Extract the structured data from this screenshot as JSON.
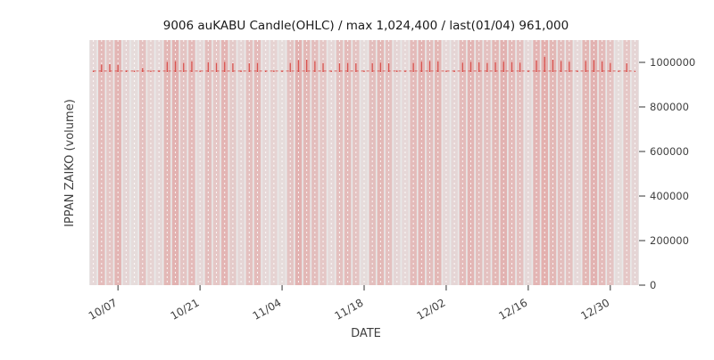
{
  "title": "9006 auKABU Candle(OHLC) / max 1,024,400 / last(01/04) 961,000",
  "axes": {
    "xlabel": "DATE",
    "ylabel": "IPPAN ZAIKO (volume)",
    "ytick_labels": [
      "0",
      "200000",
      "400000",
      "600000",
      "800000",
      "1000000"
    ],
    "ytick_values": [
      0,
      200000,
      400000,
      600000,
      800000,
      1000000
    ],
    "xtick_labels": [
      "10/07",
      "10/21",
      "11/04",
      "11/18",
      "12/02",
      "12/16",
      "12/30"
    ],
    "xtick_indices": [
      3,
      13,
      23,
      33,
      43,
      53,
      63
    ],
    "ylim": [
      0,
      1100000
    ]
  },
  "colors": {
    "candle": "#d9534f",
    "volume_fill": "#d9534f",
    "plot_bg": "#e8e8e8",
    "grid": "#ffffff",
    "text": "#404040",
    "title_text": "#1a1a1a",
    "tick": "#333333"
  },
  "chart_data": {
    "type": "candlestick",
    "title": "9006 auKABU Candle(OHLC) / max 1,024,400 / last(01/04) 961,000",
    "xlabel": "DATE",
    "ylabel": "IPPAN ZAIKO (volume)",
    "max_value": 1024400,
    "last": {
      "date": "01/04",
      "close": 961000
    },
    "open_all": 961000,
    "low_all": 956000,
    "close_all": 961000,
    "dates": [
      "10/04",
      "10/05",
      "10/06",
      "10/07",
      "10/10",
      "10/11",
      "10/12",
      "10/13",
      "10/14",
      "10/17",
      "10/18",
      "10/19",
      "10/20",
      "10/21",
      "10/24",
      "10/25",
      "10/26",
      "10/27",
      "10/28",
      "10/31",
      "11/01",
      "11/02",
      "11/03",
      "11/04",
      "11/07",
      "11/08",
      "11/09",
      "11/10",
      "11/11",
      "11/14",
      "11/15",
      "11/16",
      "11/17",
      "11/18",
      "11/21",
      "11/22",
      "11/23",
      "11/24",
      "11/25",
      "11/28",
      "11/29",
      "11/30",
      "12/01",
      "12/02",
      "12/05",
      "12/06",
      "12/07",
      "12/08",
      "12/09",
      "12/12",
      "12/13",
      "12/14",
      "12/15",
      "12/16",
      "12/19",
      "12/20",
      "12/21",
      "12/22",
      "12/23",
      "12/26",
      "12/27",
      "12/28",
      "12/29",
      "12/30",
      "01/02",
      "01/03",
      "01/04"
    ],
    "highs": [
      963000,
      990000,
      992000,
      988000,
      964000,
      963000,
      975000,
      963000,
      964000,
      1002000,
      1005000,
      998000,
      1004000,
      963000,
      1000000,
      998000,
      1002000,
      996000,
      964000,
      996000,
      998000,
      963000,
      964000,
      963000,
      998000,
      1010000,
      1012000,
      1005000,
      997000,
      963000,
      996000,
      998000,
      996000,
      963000,
      997000,
      999000,
      996000,
      964000,
      963000,
      998000,
      1003000,
      1006000,
      1004000,
      963000,
      964000,
      999000,
      1002000,
      1000000,
      998000,
      1000000,
      1003000,
      1001000,
      999000,
      963000,
      1008000,
      1024400,
      1012000,
      1006000,
      1003000,
      963000,
      1006000,
      1010000,
      1004000,
      998000,
      963000,
      996000,
      961000
    ],
    "volume_alpha": [
      0.1,
      0.3,
      0.22,
      0.34,
      0.12,
      0.08,
      0.26,
      0.14,
      0.1,
      0.32,
      0.36,
      0.24,
      0.3,
      0.1,
      0.28,
      0.22,
      0.34,
      0.2,
      0.12,
      0.26,
      0.3,
      0.1,
      0.14,
      0.08,
      0.24,
      0.36,
      0.32,
      0.28,
      0.22,
      0.1,
      0.26,
      0.3,
      0.24,
      0.08,
      0.28,
      0.32,
      0.26,
      0.12,
      0.1,
      0.3,
      0.34,
      0.28,
      0.32,
      0.1,
      0.12,
      0.3,
      0.34,
      0.28,
      0.26,
      0.32,
      0.36,
      0.3,
      0.26,
      0.1,
      0.34,
      0.38,
      0.32,
      0.28,
      0.26,
      0.1,
      0.32,
      0.36,
      0.3,
      0.24,
      0.08,
      0.22,
      0.12
    ]
  }
}
